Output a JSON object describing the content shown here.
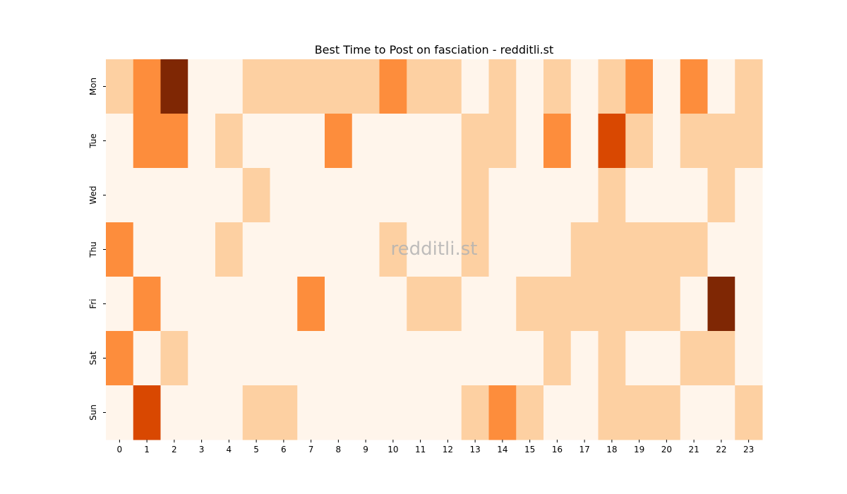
{
  "chart_data": {
    "type": "heatmap",
    "title": "Best Time to Post on fasciation - redditli.st",
    "watermark": "redditli.st",
    "x_categories": [
      "0",
      "1",
      "2",
      "3",
      "4",
      "5",
      "6",
      "7",
      "8",
      "9",
      "10",
      "11",
      "12",
      "13",
      "14",
      "15",
      "16",
      "17",
      "18",
      "19",
      "20",
      "21",
      "22",
      "23"
    ],
    "y_categories": [
      "Mon",
      "Tue",
      "Wed",
      "Thu",
      "Fri",
      "Sat",
      "Sun"
    ],
    "values": [
      [
        1,
        2,
        4,
        0,
        0,
        1,
        1,
        1,
        1,
        1,
        2,
        1,
        1,
        0,
        1,
        0,
        1,
        0,
        1,
        2,
        0,
        2,
        0,
        1
      ],
      [
        0,
        2,
        2,
        0,
        1,
        0,
        0,
        0,
        2,
        0,
        0,
        0,
        0,
        1,
        1,
        0,
        2,
        0,
        3,
        1,
        0,
        1,
        1,
        1
      ],
      [
        0,
        0,
        0,
        0,
        0,
        1,
        0,
        0,
        0,
        0,
        0,
        0,
        0,
        1,
        0,
        0,
        0,
        0,
        1,
        0,
        0,
        0,
        1,
        0
      ],
      [
        2,
        0,
        0,
        0,
        1,
        0,
        0,
        0,
        0,
        0,
        1,
        0,
        0,
        1,
        0,
        0,
        0,
        1,
        1,
        1,
        1,
        1,
        0,
        0
      ],
      [
        0,
        2,
        0,
        0,
        0,
        0,
        0,
        2,
        0,
        0,
        0,
        1,
        1,
        0,
        0,
        1,
        1,
        1,
        1,
        1,
        1,
        0,
        4,
        0
      ],
      [
        2,
        0,
        1,
        0,
        0,
        0,
        0,
        0,
        0,
        0,
        0,
        0,
        0,
        0,
        0,
        0,
        1,
        0,
        1,
        0,
        0,
        1,
        1,
        0
      ],
      [
        0,
        3,
        0,
        0,
        0,
        1,
        1,
        0,
        0,
        0,
        0,
        0,
        0,
        1,
        2,
        1,
        0,
        0,
        1,
        1,
        1,
        0,
        0,
        1
      ]
    ],
    "color_scale": [
      "#fff5eb",
      "#fdd0a2",
      "#fd8d3c",
      "#d94801",
      "#7f2704"
    ],
    "colorbar": false
  }
}
